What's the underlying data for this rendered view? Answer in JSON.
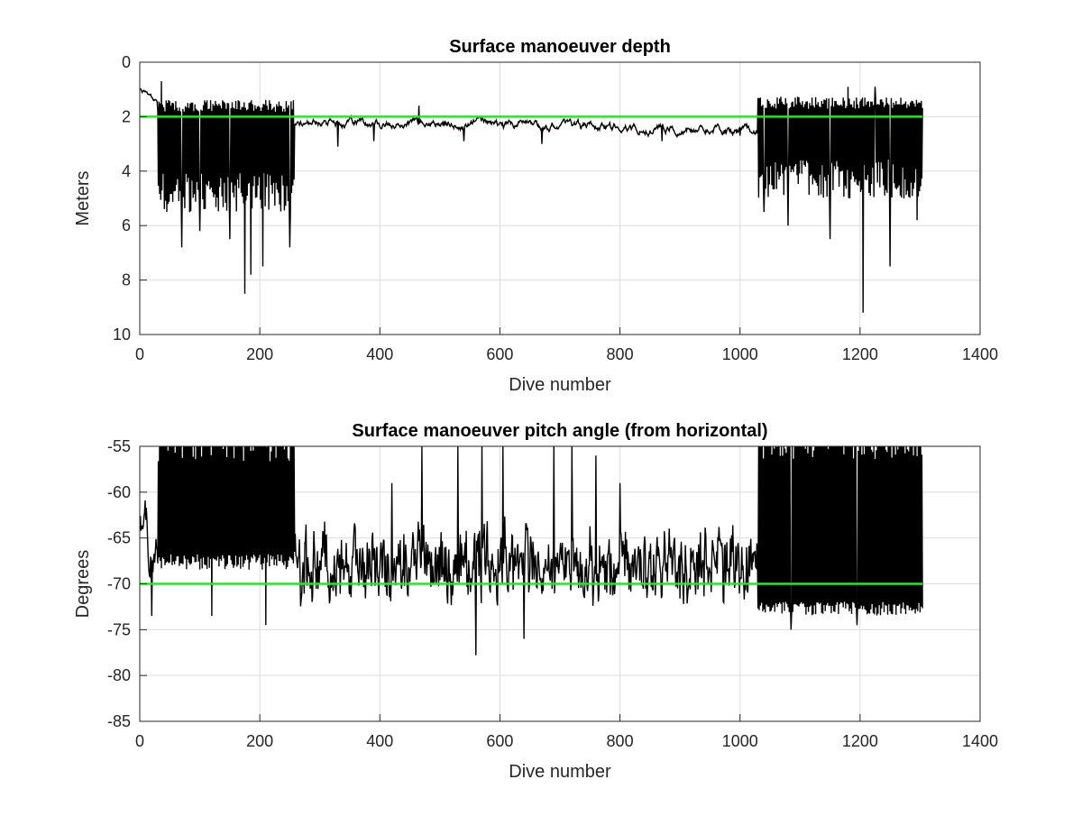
{
  "chart_data": [
    {
      "type": "line",
      "title": "Surface manoeuver depth",
      "xlabel": "Dive number",
      "ylabel": "Meters",
      "xlim": [
        0,
        1400
      ],
      "ylim": [
        0,
        10
      ],
      "y_reversed": true,
      "grid": true,
      "xticks": [
        "0",
        "200",
        "400",
        "600",
        "800",
        "1000",
        "1200",
        "1400"
      ],
      "yticks": [
        "0",
        "2",
        "4",
        "6",
        "8",
        "10"
      ],
      "reference_line": {
        "y": 2,
        "color": "#33dd33"
      },
      "series_color": "#000000",
      "segments": [
        {
          "x_start": 1,
          "x_end": 30,
          "pattern": "trend",
          "from": 1.0,
          "to": 1.4,
          "noise": 0.08
        },
        {
          "x_start": 30,
          "x_end": 258,
          "pattern": "oscillating",
          "low": 1.5,
          "high": 4.5,
          "noise": 0.9,
          "spikes": [
            [
              36,
              0.7
            ],
            [
              45,
              5.5
            ],
            [
              70,
              6.8
            ],
            [
              100,
              6.2
            ],
            [
              150,
              6.5
            ],
            [
              175,
              8.5
            ],
            [
              185,
              7.8
            ],
            [
              205,
              7.5
            ],
            [
              250,
              6.8
            ]
          ]
        },
        {
          "x_start": 258,
          "x_end": 1030,
          "pattern": "trend",
          "from": 2.2,
          "to": 2.5,
          "noise": 0.15,
          "spikes": [
            [
              330,
              3.1
            ],
            [
              390,
              2.9
            ],
            [
              465,
              1.6
            ],
            [
              540,
              2.9
            ],
            [
              670,
              3.0
            ],
            [
              870,
              2.9
            ],
            [
              1000,
              2.7
            ]
          ]
        },
        {
          "x_start": 1030,
          "x_end": 1305,
          "pattern": "oscillating",
          "low": 1.4,
          "high": 4.0,
          "noise": 0.9,
          "spikes": [
            [
              1040,
              5.5
            ],
            [
              1080,
              6.0
            ],
            [
              1150,
              6.5
            ],
            [
              1180,
              0.9
            ],
            [
              1205,
              9.2
            ],
            [
              1225,
              0.9
            ],
            [
              1250,
              7.5
            ],
            [
              1295,
              5.8
            ]
          ]
        }
      ]
    },
    {
      "type": "line",
      "title": "Surface manoeuver pitch angle (from horizontal)",
      "xlabel": "Dive number",
      "ylabel": "Degrees",
      "xlim": [
        0,
        1400
      ],
      "ylim": [
        -85,
        -55
      ],
      "grid": true,
      "xticks": [
        "0",
        "200",
        "400",
        "600",
        "800",
        "1000",
        "1200",
        "1400"
      ],
      "yticks": [
        "-55",
        "-60",
        "-65",
        "-70",
        "-75",
        "-80",
        "-85"
      ],
      "reference_line": {
        "y": -70,
        "color": "#33dd33"
      },
      "series_color": "#000000",
      "segments": [
        {
          "x_start": 1,
          "x_end": 30,
          "pattern": "trend",
          "from": -62,
          "to": -68,
          "noise": 3.0,
          "spikes": [
            [
              20,
              -73.5
            ]
          ]
        },
        {
          "x_start": 30,
          "x_end": 258,
          "pattern": "oscillating",
          "low": -68,
          "high": -55,
          "noise": 3.5,
          "spikes": [
            [
              120,
              -73.5
            ],
            [
              210,
              -74.5
            ]
          ]
        },
        {
          "x_start": 258,
          "x_end": 1030,
          "pattern": "noisy",
          "center": -68,
          "amplitude": 5.0,
          "spikes": [
            [
              420,
              -59
            ],
            [
              470,
              -55
            ],
            [
              530,
              -55
            ],
            [
              560,
              -77.8
            ],
            [
              570,
              -55
            ],
            [
              605,
              -55
            ],
            [
              640,
              -76
            ],
            [
              690,
              -55
            ],
            [
              720,
              -55
            ],
            [
              760,
              -56
            ],
            [
              800,
              -59
            ]
          ]
        },
        {
          "x_start": 1030,
          "x_end": 1305,
          "pattern": "oscillating",
          "low": -73,
          "high": -55,
          "noise": 3.0,
          "spikes": [
            [
              1085,
              -75
            ],
            [
              1195,
              -74.5
            ]
          ]
        }
      ]
    }
  ]
}
